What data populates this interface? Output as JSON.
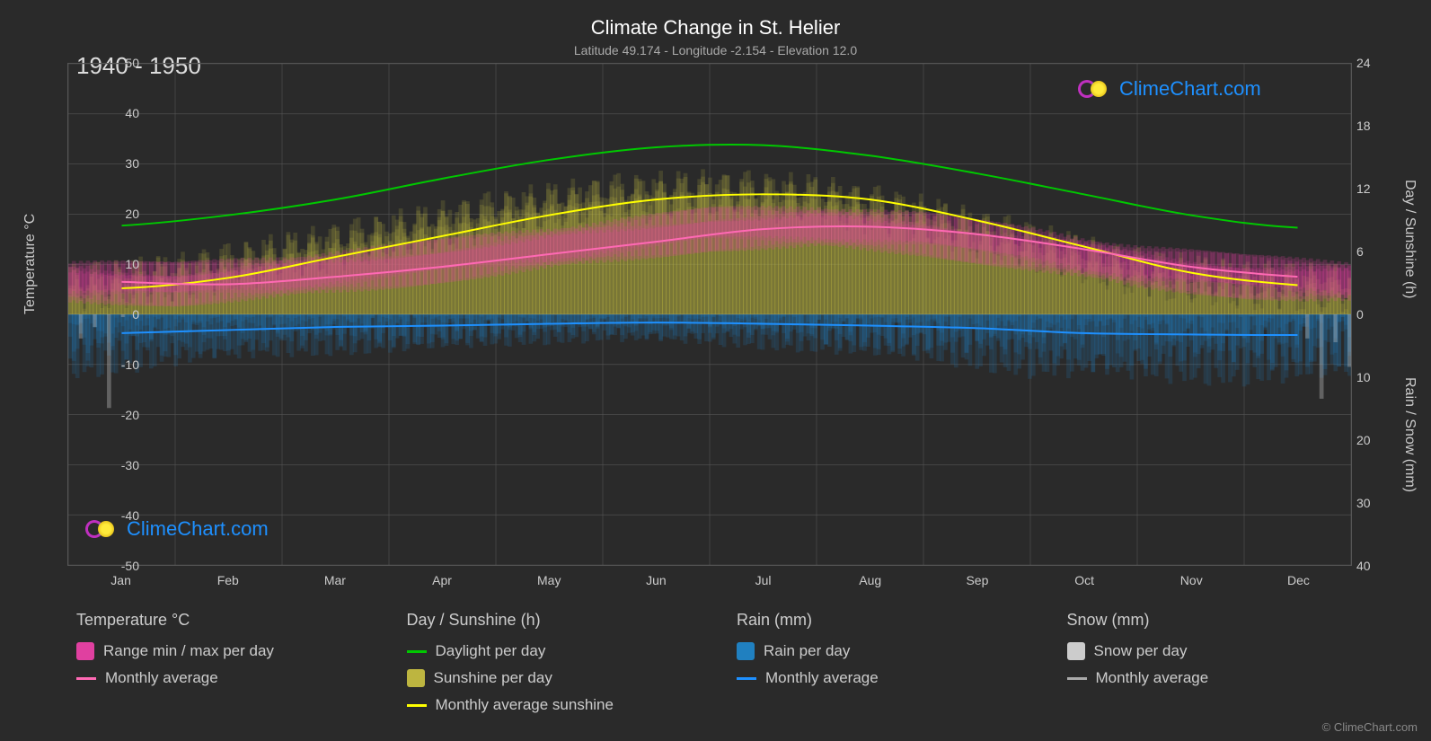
{
  "title": "Climate Change in St. Helier",
  "subtitle": "Latitude 49.174 - Longitude -2.154 - Elevation 12.0",
  "year_range": "1940 - 1950",
  "axes": {
    "left_label": "Temperature °C",
    "right_label_top": "Day / Sunshine (h)",
    "right_label_bottom": "Rain / Snow (mm)",
    "left_ticks": [
      50,
      40,
      30,
      20,
      10,
      0,
      -10,
      -20,
      -30,
      -40,
      -50
    ],
    "right_ticks_top": [
      24,
      18,
      12,
      6,
      0
    ],
    "right_ticks_bottom": [
      0,
      10,
      20,
      30,
      40
    ],
    "x_labels": [
      "Jan",
      "Feb",
      "Mar",
      "Apr",
      "May",
      "Jun",
      "Jul",
      "Aug",
      "Sep",
      "Oct",
      "Nov",
      "Dec"
    ]
  },
  "chart": {
    "background": "#2a2a2a",
    "plot_background": "#1f1f1f",
    "grid_color": "#555555",
    "left_ylim": [
      -50,
      50
    ],
    "right_top_ylim": [
      0,
      24
    ],
    "right_bottom_ylim": [
      0,
      40
    ],
    "months": 12,
    "daylight": {
      "color": "#00c800",
      "width": 2,
      "values": [
        8.5,
        9.5,
        11.0,
        13.0,
        14.8,
        16.0,
        16.2,
        15.2,
        13.5,
        11.5,
        9.5,
        8.3
      ]
    },
    "sunshine_avg": {
      "color": "#ffff00",
      "width": 2,
      "values": [
        2.5,
        3.5,
        5.5,
        7.5,
        9.5,
        11.0,
        11.5,
        11.0,
        9.0,
        6.5,
        4.0,
        2.8
      ]
    },
    "temp_avg": {
      "color": "#ff69b4",
      "width": 2,
      "values": [
        6.5,
        6.0,
        7.5,
        9.5,
        12.0,
        14.5,
        17.0,
        17.5,
        16.0,
        13.0,
        9.5,
        7.5
      ]
    },
    "rain_avg": {
      "color": "#1e90ff",
      "width": 2,
      "values": [
        3.0,
        2.5,
        2.0,
        1.8,
        1.5,
        1.3,
        1.5,
        1.8,
        2.2,
        3.0,
        3.2,
        3.3
      ]
    },
    "temp_range_color": "#e040a0",
    "temp_range_opacity": 0.4,
    "sunshine_fill_color": "#bdb540",
    "sunshine_fill_opacity": 0.6,
    "rain_fill_color": "#2080c0",
    "rain_fill_opacity": 0.45,
    "snow_fill_color": "#cccccc",
    "snow_fill_opacity": 0.5
  },
  "legend": {
    "temperature": {
      "title": "Temperature °C",
      "items": [
        {
          "type": "swatch",
          "color": "#e040a0",
          "label": "Range min / max per day"
        },
        {
          "type": "line",
          "color": "#ff69b4",
          "label": "Monthly average"
        }
      ]
    },
    "daylight": {
      "title": "Day / Sunshine (h)",
      "items": [
        {
          "type": "line",
          "color": "#00c800",
          "label": "Daylight per day"
        },
        {
          "type": "swatch",
          "color": "#bdb540",
          "label": "Sunshine per day"
        },
        {
          "type": "line",
          "color": "#ffff00",
          "label": "Monthly average sunshine"
        }
      ]
    },
    "rain": {
      "title": "Rain (mm)",
      "items": [
        {
          "type": "swatch",
          "color": "#2080c0",
          "label": "Rain per day"
        },
        {
          "type": "line",
          "color": "#1e90ff",
          "label": "Monthly average"
        }
      ]
    },
    "snow": {
      "title": "Snow (mm)",
      "items": [
        {
          "type": "swatch",
          "color": "#cccccc",
          "label": "Snow per day"
        },
        {
          "type": "line",
          "color": "#aaaaaa",
          "label": "Monthly average"
        }
      ]
    }
  },
  "watermark": "ClimeChart.com",
  "copyright": "© ClimeChart.com"
}
